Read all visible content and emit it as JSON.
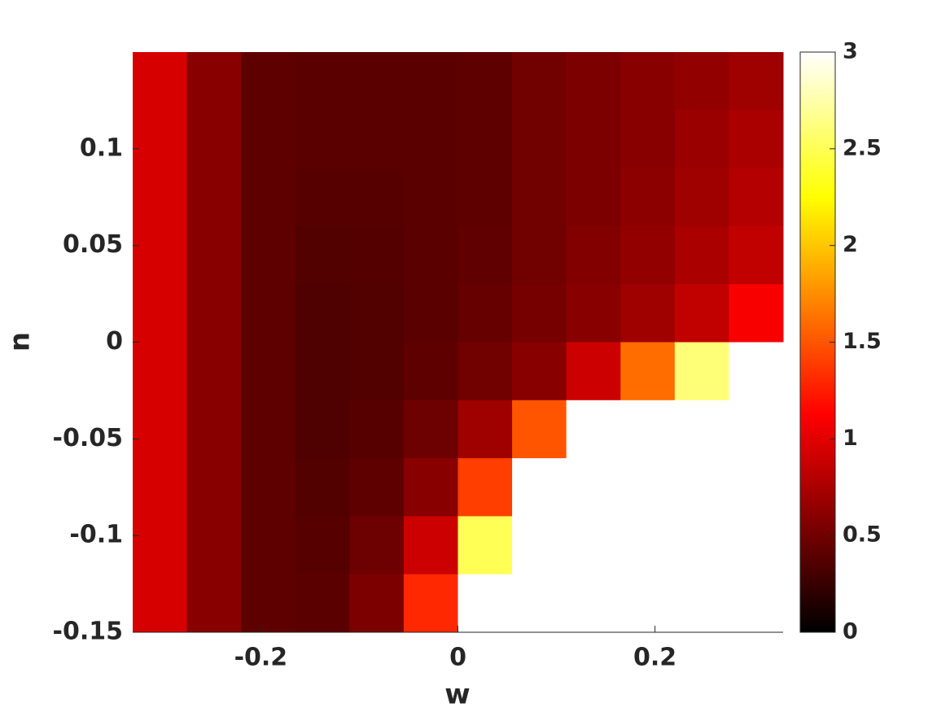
{
  "chart_data": {
    "type": "contourf",
    "x_label": "w",
    "y_label": "n",
    "xlim": [
      -0.33,
      0.33
    ],
    "ylim": [
      -0.15,
      0.15
    ],
    "xticks": [
      -0.2,
      0,
      0.2
    ],
    "yticks": [
      -0.15,
      -0.1,
      -0.05,
      0,
      0.05,
      0.1
    ],
    "x": [
      -0.3025,
      -0.2475,
      -0.1925,
      -0.1375,
      -0.0825,
      -0.0275,
      0.0275,
      0.0825,
      0.1375,
      0.1925,
      0.2475,
      0.3025
    ],
    "y": [
      0.135,
      0.105,
      0.075,
      0.045,
      0.015,
      -0.015,
      -0.045,
      -0.075,
      -0.105,
      -0.135
    ],
    "z": [
      [
        0.95,
        0.6,
        0.42,
        0.4,
        0.4,
        0.4,
        0.42,
        0.5,
        0.55,
        0.6,
        0.65,
        0.7
      ],
      [
        0.95,
        0.6,
        0.42,
        0.4,
        0.4,
        0.4,
        0.42,
        0.5,
        0.55,
        0.6,
        0.68,
        0.75
      ],
      [
        0.95,
        0.6,
        0.42,
        0.38,
        0.38,
        0.4,
        0.42,
        0.5,
        0.55,
        0.62,
        0.7,
        0.8
      ],
      [
        0.95,
        0.6,
        0.42,
        0.36,
        0.37,
        0.4,
        0.43,
        0.5,
        0.58,
        0.65,
        0.75,
        0.85
      ],
      [
        0.95,
        0.6,
        0.42,
        0.35,
        0.36,
        0.4,
        0.45,
        0.52,
        0.6,
        0.7,
        0.85,
        1.1
      ],
      [
        0.95,
        0.6,
        0.42,
        0.35,
        0.36,
        0.42,
        0.5,
        0.6,
        0.9,
        1.6,
        2.6,
        3
      ],
      [
        0.95,
        0.6,
        0.42,
        0.35,
        0.38,
        0.48,
        0.7,
        1.5,
        3,
        3,
        3,
        3
      ],
      [
        0.95,
        0.6,
        0.42,
        0.36,
        0.42,
        0.6,
        1.4,
        3,
        3,
        3,
        3,
        3
      ],
      [
        0.95,
        0.6,
        0.42,
        0.38,
        0.48,
        0.9,
        2.5,
        3,
        3,
        3,
        3,
        3
      ],
      [
        0.95,
        0.6,
        0.42,
        0.4,
        0.55,
        1.3,
        3,
        3,
        3,
        3,
        3,
        3
      ]
    ],
    "colormap": "hot",
    "clim": [
      0,
      3
    ],
    "cticks": [
      0,
      0.5,
      1,
      1.5,
      2,
      2.5,
      3
    ]
  }
}
